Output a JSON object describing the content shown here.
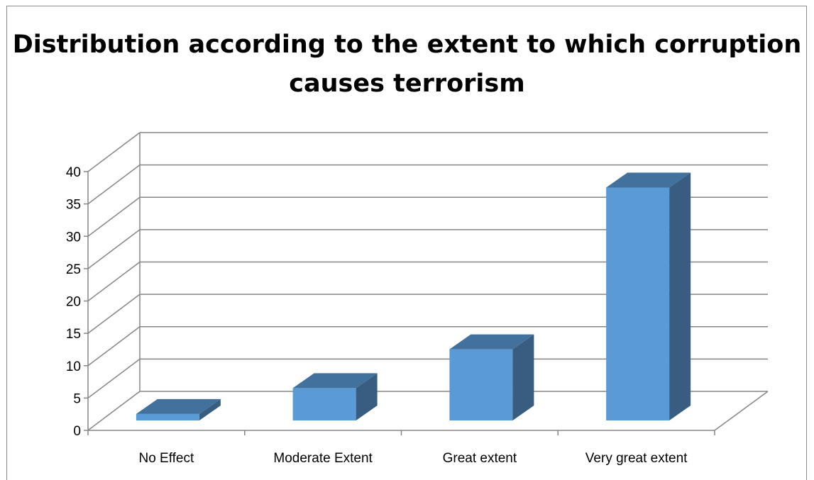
{
  "chart_data": {
    "type": "bar",
    "title": "Distribution according to the extent to which corruption causes terrorism",
    "categories": [
      "No Effect",
      "Moderate Extent",
      "Great extent",
      "Very great extent"
    ],
    "values": [
      1,
      5,
      11,
      36
    ],
    "ylim": [
      0,
      40
    ],
    "yticks": [
      0,
      5,
      10,
      15,
      20,
      25,
      30,
      35,
      40
    ],
    "grid": true,
    "legend": "none",
    "colors": {
      "front": "#5b9bd5",
      "top": "#41719c",
      "side": "#385d80",
      "grid": "#868686"
    }
  }
}
